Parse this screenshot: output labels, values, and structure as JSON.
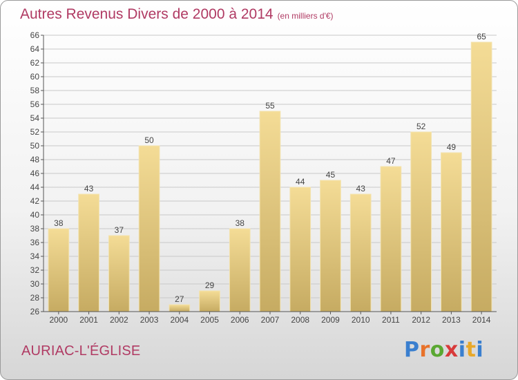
{
  "title": "Autres Revenus Divers de 2000 à 2014",
  "unit": "(en milliers d'€)",
  "commune": "AURIAC-L'ÉGLISE",
  "logo": {
    "letters": [
      "P",
      "r",
      "o",
      "x",
      "i",
      "t",
      "i"
    ],
    "colors": [
      "#3a7fcf",
      "#e8722a",
      "#5aa832",
      "#d83a3a",
      "#3a7fcf",
      "#e8a82a",
      "#3a7fcf"
    ]
  },
  "colors": {
    "title": "#b03a63",
    "bar_top": "#f4dc96",
    "bar_bottom": "#c6ab62",
    "grid": "#c8c8c8",
    "axis": "#555555",
    "label": "#444444"
  },
  "chart_data": {
    "type": "bar",
    "title": "Autres Revenus Divers de 2000 à 2014",
    "categories": [
      "2000",
      "2001",
      "2002",
      "2003",
      "2004",
      "2005",
      "2006",
      "2007",
      "2008",
      "2009",
      "2010",
      "2011",
      "2012",
      "2013",
      "2014"
    ],
    "values": [
      38,
      43,
      37,
      50,
      27,
      29,
      38,
      55,
      44,
      45,
      43,
      47,
      52,
      49,
      65
    ],
    "ylim": [
      26,
      66
    ],
    "ytick_step": 2,
    "grid": true,
    "data_labels": true,
    "xlabel": "",
    "ylabel": ""
  }
}
